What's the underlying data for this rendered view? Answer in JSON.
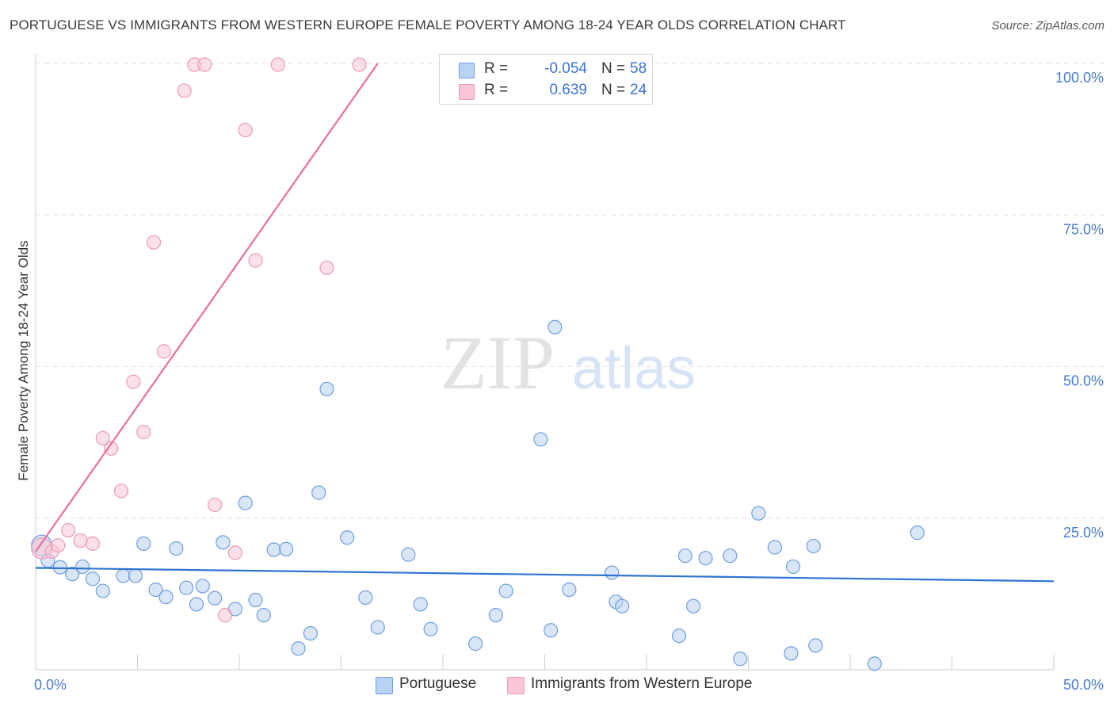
{
  "title": "PORTUGUESE VS IMMIGRANTS FROM WESTERN EUROPE FEMALE POVERTY AMONG 18-24 YEAR OLDS CORRELATION CHART",
  "source": "Source: ZipAtlas.com",
  "watermark": {
    "zip": "ZIP",
    "atlas": "atlas"
  },
  "colors": {
    "blue_fill": "#b9d1f3",
    "blue_stroke": "#6f9ee0",
    "blue_line": "#2f74d0",
    "pink_fill": "#f8c6d6",
    "pink_stroke": "#ec9ab5",
    "pink_line": "#e8709a",
    "tick_text": "#4a7bd0",
    "grid": "#e3e3e3"
  },
  "legend": {
    "rows": [
      {
        "r_label": "R =",
        "r_value": "-0.054",
        "n_label": "N =",
        "n_value": "58",
        "color": "blue"
      },
      {
        "r_label": "R =",
        "r_value": "0.639",
        "n_label": "N =",
        "n_value": "24",
        "color": "pink"
      }
    ]
  },
  "bottom_legend": [
    {
      "label": "Portuguese",
      "color": "blue"
    },
    {
      "label": "Immigrants from Western Europe",
      "color": "pink"
    }
  ],
  "chart_data": {
    "type": "scatter",
    "title": "PORTUGUESE VS IMMIGRANTS FROM WESTERN EUROPE FEMALE POVERTY AMONG 18-24 YEAR OLDS CORRELATION CHART",
    "xlabel": "",
    "ylabel": "Female Poverty Among 18-24 Year Olds",
    "xlim": [
      0,
      50
    ],
    "ylim": [
      0,
      100
    ],
    "x_ticks": [
      0,
      50
    ],
    "x_tick_labels": [
      "0.0%",
      "50.0%"
    ],
    "y_ticks": [
      25,
      50,
      75,
      100
    ],
    "y_tick_labels": [
      "25.0%",
      "50.0%",
      "75.0%",
      "100.0%"
    ],
    "grid": true,
    "legend": "top-center",
    "series": [
      {
        "name": "Portuguese",
        "color": "blue",
        "points": [
          [
            0.3,
            20.5
          ],
          [
            0.6,
            18.0
          ],
          [
            1.2,
            16.9
          ],
          [
            1.8,
            15.8
          ],
          [
            2.3,
            17.0
          ],
          [
            3.3,
            13.0
          ],
          [
            2.8,
            15.0
          ],
          [
            4.3,
            15.5
          ],
          [
            4.9,
            15.5
          ],
          [
            5.3,
            20.8
          ],
          [
            5.9,
            13.2
          ],
          [
            6.4,
            12.0
          ],
          [
            6.9,
            20.0
          ],
          [
            7.4,
            13.5
          ],
          [
            7.9,
            10.8
          ],
          [
            8.2,
            13.8
          ],
          [
            8.8,
            11.8
          ],
          [
            9.2,
            21.0
          ],
          [
            9.8,
            10.0
          ],
          [
            10.3,
            27.5
          ],
          [
            10.8,
            11.5
          ],
          [
            11.2,
            9.0
          ],
          [
            11.7,
            19.8
          ],
          [
            12.3,
            19.9
          ],
          [
            12.9,
            3.5
          ],
          [
            13.5,
            6.0
          ],
          [
            13.9,
            29.2
          ],
          [
            14.3,
            46.3
          ],
          [
            15.3,
            21.8
          ],
          [
            16.2,
            11.9
          ],
          [
            16.8,
            7.0
          ],
          [
            18.3,
            19.0
          ],
          [
            18.9,
            10.8
          ],
          [
            19.4,
            6.7
          ],
          [
            21.6,
            4.3
          ],
          [
            22.6,
            9.0
          ],
          [
            23.1,
            13.0
          ],
          [
            24.8,
            38.0
          ],
          [
            25.3,
            6.5
          ],
          [
            25.5,
            56.5
          ],
          [
            26.2,
            13.2
          ],
          [
            28.3,
            16.0
          ],
          [
            28.5,
            11.2
          ],
          [
            28.8,
            10.5
          ],
          [
            31.6,
            5.6
          ],
          [
            31.9,
            18.8
          ],
          [
            32.3,
            10.5
          ],
          [
            32.9,
            18.4
          ],
          [
            34.1,
            18.8
          ],
          [
            34.6,
            1.8
          ],
          [
            35.5,
            25.8
          ],
          [
            36.3,
            20.2
          ],
          [
            37.1,
            2.7
          ],
          [
            37.2,
            17.0
          ],
          [
            38.2,
            20.4
          ],
          [
            38.3,
            4.0
          ],
          [
            41.2,
            1.0
          ],
          [
            43.3,
            22.6
          ]
        ],
        "trend": {
          "x0": 0,
          "y0": 16.8,
          "x1": 50,
          "y1": 14.6
        }
      },
      {
        "name": "Immigrants from Western Europe",
        "color": "pink",
        "points": [
          [
            0.3,
            20.0
          ],
          [
            0.8,
            19.5
          ],
          [
            1.1,
            20.5
          ],
          [
            1.6,
            23.0
          ],
          [
            2.2,
            21.3
          ],
          [
            2.8,
            20.8
          ],
          [
            3.3,
            38.2
          ],
          [
            3.7,
            36.5
          ],
          [
            4.2,
            29.5
          ],
          [
            4.8,
            47.5
          ],
          [
            5.3,
            39.2
          ],
          [
            5.8,
            70.5
          ],
          [
            6.3,
            52.5
          ],
          [
            7.3,
            95.5
          ],
          [
            7.8,
            99.8
          ],
          [
            8.3,
            99.8
          ],
          [
            8.8,
            27.2
          ],
          [
            9.3,
            9.0
          ],
          [
            9.8,
            19.3
          ],
          [
            10.3,
            89.0
          ],
          [
            10.8,
            67.5
          ],
          [
            11.9,
            99.8
          ],
          [
            14.3,
            66.3
          ],
          [
            15.9,
            99.8
          ]
        ],
        "trend": {
          "x0": 0,
          "y0": 19.5,
          "x1": 16.8,
          "y1": 100
        }
      }
    ]
  }
}
